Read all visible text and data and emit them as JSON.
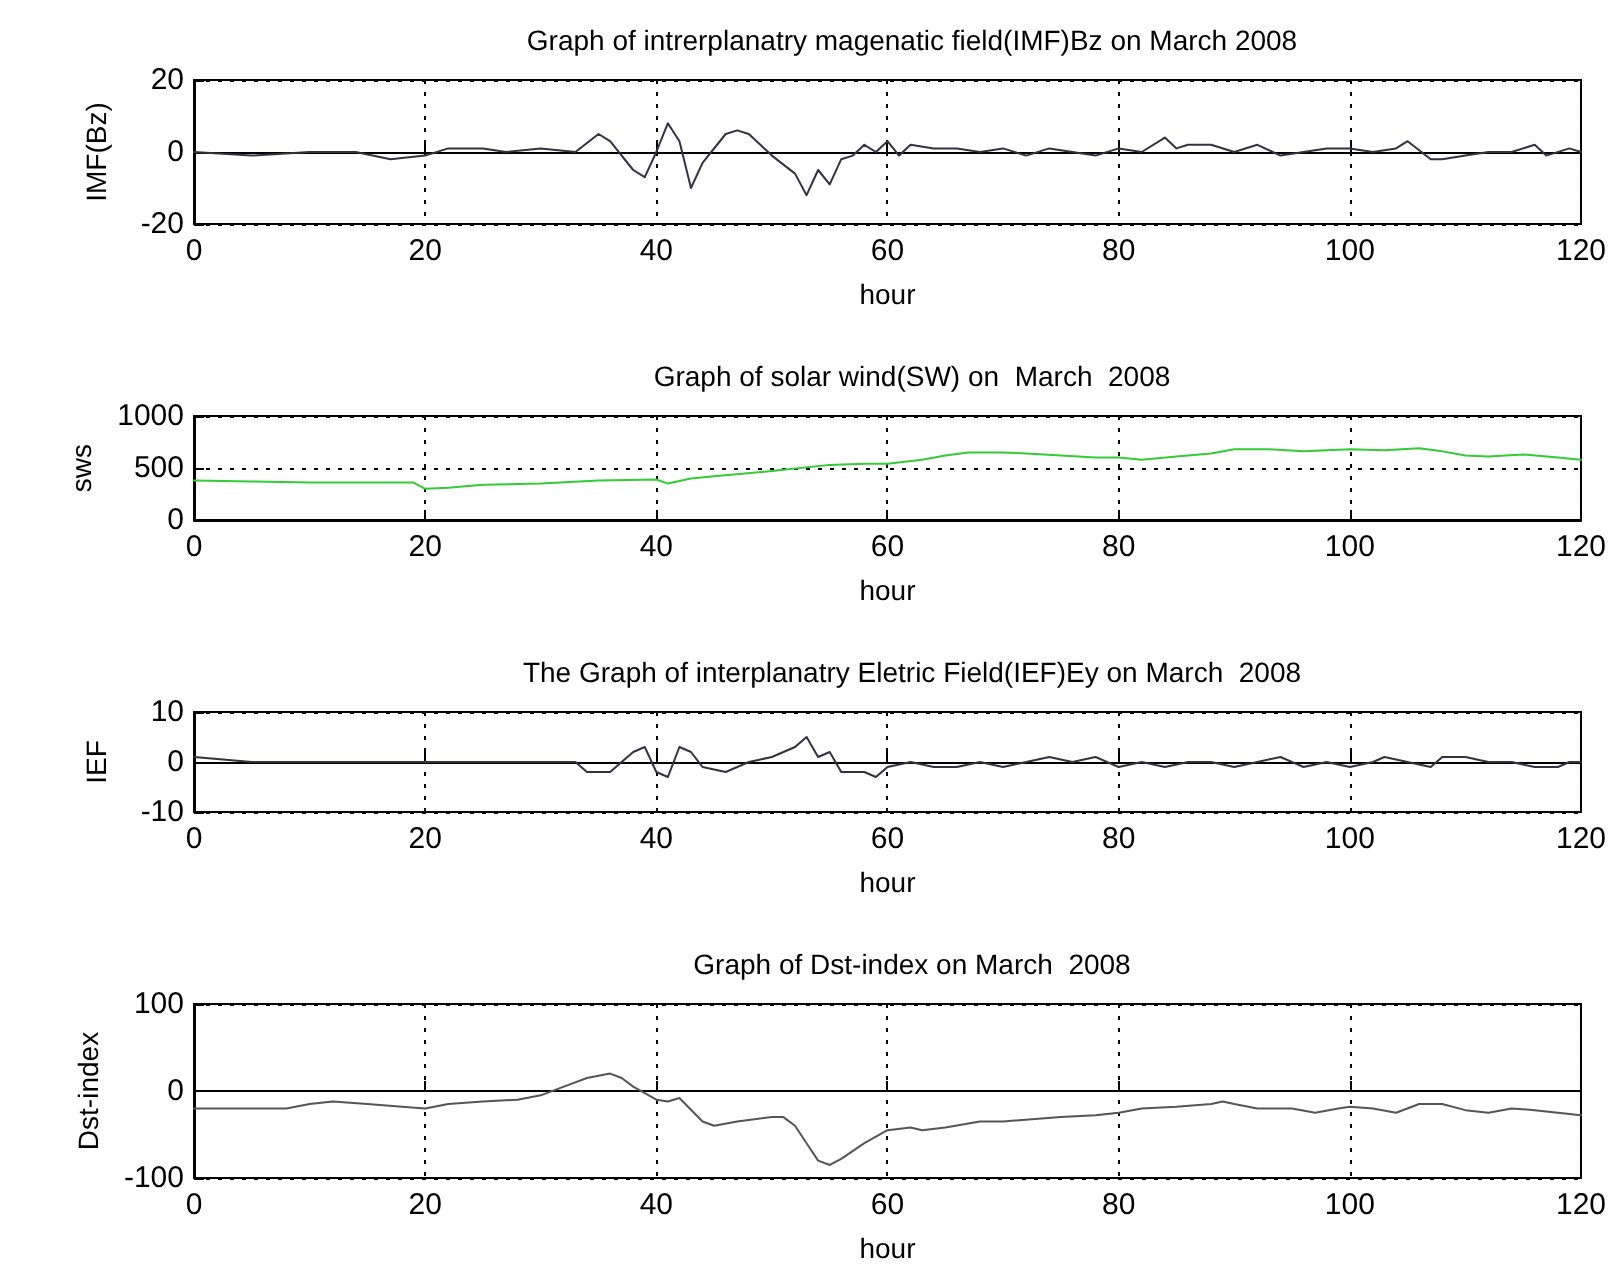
{
  "chart_data": [
    {
      "type": "line",
      "title": "Graph of intrerplanatry magenatic field(IMF)Bz on March 2008",
      "xlabel": "hour",
      "ylabel": "IMF(Bz)",
      "xlim": [
        0,
        120
      ],
      "xticks": [
        0,
        20,
        40,
        60,
        80,
        100,
        120
      ],
      "ylim": [
        -20,
        20
      ],
      "yticks": [
        -20,
        0,
        20
      ],
      "grid": true,
      "line_style": "solid",
      "series": [
        {
          "color": "#333340",
          "x": [
            0,
            5,
            10,
            14,
            17,
            20,
            22,
            25,
            27,
            30,
            33,
            35,
            36,
            38,
            39,
            40,
            41,
            42,
            43,
            44,
            46,
            47,
            48,
            50,
            52,
            53,
            54,
            55,
            56,
            57,
            58,
            59,
            60,
            61,
            62,
            64,
            66,
            68,
            70,
            72,
            74,
            76,
            78,
            80,
            82,
            84,
            85,
            86,
            88,
            90,
            92,
            94,
            96,
            98,
            100,
            102,
            104,
            105,
            107,
            108,
            110,
            112,
            114,
            116,
            117,
            119,
            120
          ],
          "values": [
            0,
            -1,
            0,
            0,
            -2,
            -1,
            1,
            1,
            0,
            1,
            0,
            5,
            3,
            -5,
            -7,
            0,
            8,
            3,
            -10,
            -3,
            5,
            6,
            5,
            -1,
            -6,
            -12,
            -5,
            -9,
            -2,
            -1,
            2,
            0,
            3,
            -1,
            2,
            1,
            1,
            0,
            1,
            -1,
            1,
            0,
            -1,
            1,
            0,
            4,
            1,
            2,
            2,
            0,
            2,
            -1,
            0,
            1,
            1,
            0,
            1,
            3,
            -2,
            -2,
            -1,
            0,
            0,
            2,
            -1,
            1,
            0
          ]
        }
      ]
    },
    {
      "type": "line",
      "title": "Graph of solar wind(SW) on  March  2008",
      "xlabel": "hour",
      "ylabel": "sws",
      "xlim": [
        0,
        120
      ],
      "xticks": [
        0,
        20,
        40,
        60,
        80,
        100,
        120
      ],
      "ylim": [
        0,
        1000
      ],
      "yticks": [
        0,
        500,
        1000
      ],
      "grid": true,
      "line_style": "solid",
      "series": [
        {
          "color": "#33cc33",
          "x": [
            0,
            5,
            10,
            15,
            19,
            20,
            22,
            25,
            30,
            35,
            40,
            41,
            43,
            45,
            50,
            55,
            58,
            60,
            63,
            65,
            67,
            70,
            72,
            75,
            78,
            80,
            82,
            85,
            88,
            90,
            93,
            96,
            100,
            103,
            106,
            108,
            110,
            112,
            115,
            118,
            120
          ],
          "values": [
            380,
            370,
            360,
            360,
            360,
            300,
            310,
            340,
            350,
            380,
            390,
            350,
            400,
            420,
            470,
            530,
            540,
            540,
            580,
            620,
            650,
            650,
            640,
            620,
            600,
            600,
            580,
            610,
            640,
            680,
            680,
            660,
            680,
            670,
            690,
            660,
            620,
            610,
            630,
            600,
            580
          ]
        }
      ]
    },
    {
      "type": "line",
      "title": "The Graph of interplanatry Eletric Field(IEF)Ey on March  2008",
      "xlabel": "hour",
      "ylabel": "IEF",
      "xlim": [
        0,
        120
      ],
      "xticks": [
        0,
        20,
        40,
        60,
        80,
        100,
        120
      ],
      "ylim": [
        -10,
        10
      ],
      "yticks": [
        -10,
        0,
        10
      ],
      "grid": true,
      "line_style": "solid",
      "series": [
        {
          "color": "#333340",
          "x": [
            0,
            5,
            10,
            15,
            20,
            25,
            30,
            33,
            34,
            36,
            38,
            39,
            40,
            41,
            42,
            43,
            44,
            46,
            48,
            50,
            52,
            53,
            54,
            55,
            56,
            58,
            59,
            60,
            62,
            64,
            66,
            68,
            70,
            72,
            74,
            76,
            78,
            80,
            82,
            84,
            86,
            88,
            90,
            92,
            94,
            96,
            98,
            100,
            102,
            103,
            105,
            107,
            108,
            110,
            112,
            114,
            116,
            118,
            119,
            120
          ],
          "values": [
            1,
            0,
            0,
            0,
            0,
            0,
            0,
            0,
            -2,
            -2,
            2,
            3,
            -2,
            -3,
            3,
            2,
            -1,
            -2,
            0,
            1,
            3,
            5,
            1,
            2,
            -2,
            -2,
            -3,
            -1,
            0,
            -1,
            -1,
            0,
            -1,
            0,
            1,
            0,
            1,
            -1,
            0,
            -1,
            0,
            0,
            -1,
            0,
            1,
            -1,
            0,
            -1,
            0,
            1,
            0,
            -1,
            1,
            1,
            0,
            0,
            -1,
            -1,
            0,
            0
          ]
        }
      ]
    },
    {
      "type": "line",
      "title": "Graph of Dst-index on March  2008",
      "xlabel": "hour",
      "ylabel": "Dst-index",
      "xlim": [
        0,
        120
      ],
      "xticks": [
        0,
        20,
        40,
        60,
        80,
        100,
        120
      ],
      "ylim": [
        -100,
        100
      ],
      "yticks": [
        -100,
        0,
        100
      ],
      "grid": true,
      "line_style": "solid",
      "series": [
        {
          "color": "#555555",
          "x": [
            0,
            5,
            8,
            10,
            12,
            15,
            18,
            20,
            22,
            25,
            28,
            30,
            32,
            34,
            36,
            37,
            38,
            40,
            41,
            42,
            44,
            45,
            47,
            50,
            51,
            52,
            53,
            54,
            55,
            56,
            58,
            60,
            62,
            63,
            65,
            68,
            70,
            75,
            78,
            80,
            82,
            85,
            88,
            89,
            90,
            92,
            95,
            97,
            99,
            100,
            102,
            104,
            106,
            108,
            110,
            112,
            114,
            116,
            118,
            120
          ],
          "values": [
            -20,
            -20,
            -20,
            -15,
            -12,
            -15,
            -18,
            -20,
            -15,
            -12,
            -10,
            -5,
            5,
            15,
            20,
            15,
            5,
            -10,
            -12,
            -8,
            -35,
            -40,
            -35,
            -30,
            -30,
            -40,
            -60,
            -80,
            -85,
            -78,
            -60,
            -45,
            -42,
            -45,
            -42,
            -35,
            -35,
            -30,
            -28,
            -25,
            -20,
            -18,
            -15,
            -12,
            -15,
            -20,
            -20,
            -25,
            -20,
            -18,
            -20,
            -25,
            -15,
            -15,
            -22,
            -25,
            -20,
            -22,
            -25,
            -28
          ]
        }
      ]
    }
  ]
}
